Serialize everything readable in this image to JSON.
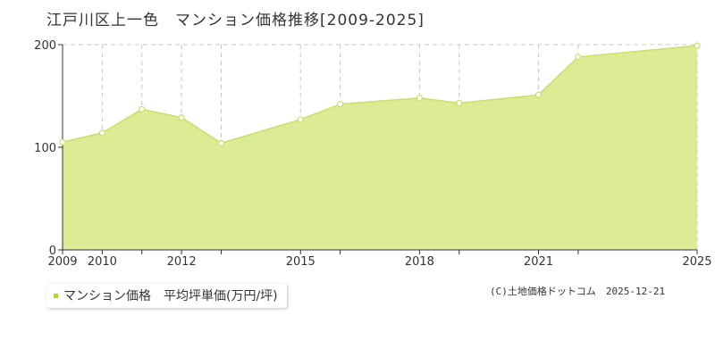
{
  "page": {
    "title": "江戸川区上一色　マンション価格推移[2009-2025]",
    "credit": "(C)土地価格ドットコム　2025-12-21"
  },
  "legend": {
    "label": "マンション価格　平均坪単価(万円/坪)"
  },
  "colors": {
    "fill": "#dcec94",
    "line": "#c6e06a",
    "marker_fill": "#ffffff",
    "grid": "#c8c8c8",
    "axis": "#333333",
    "legend_swatch": "#b5d334"
  },
  "chart_data": {
    "type": "area",
    "x": [
      2009,
      2010,
      2011,
      2012,
      2013,
      2015,
      2016,
      2018,
      2019,
      2021,
      2022,
      2025
    ],
    "series": [
      {
        "name": "マンション価格　平均坪単価(万円/坪)",
        "values": [
          105,
          114,
          137,
          129,
          104,
          127,
          142,
          148,
          143,
          151,
          188,
          199
        ]
      }
    ],
    "xlim": [
      2009,
      2025
    ],
    "ylim": [
      0,
      200
    ],
    "y_ticks": [
      0,
      100,
      200
    ],
    "x_tick_labels": [
      "2009",
      "2010",
      "2012",
      "2015",
      "2018",
      "2021",
      "2025"
    ],
    "grid": true
  }
}
